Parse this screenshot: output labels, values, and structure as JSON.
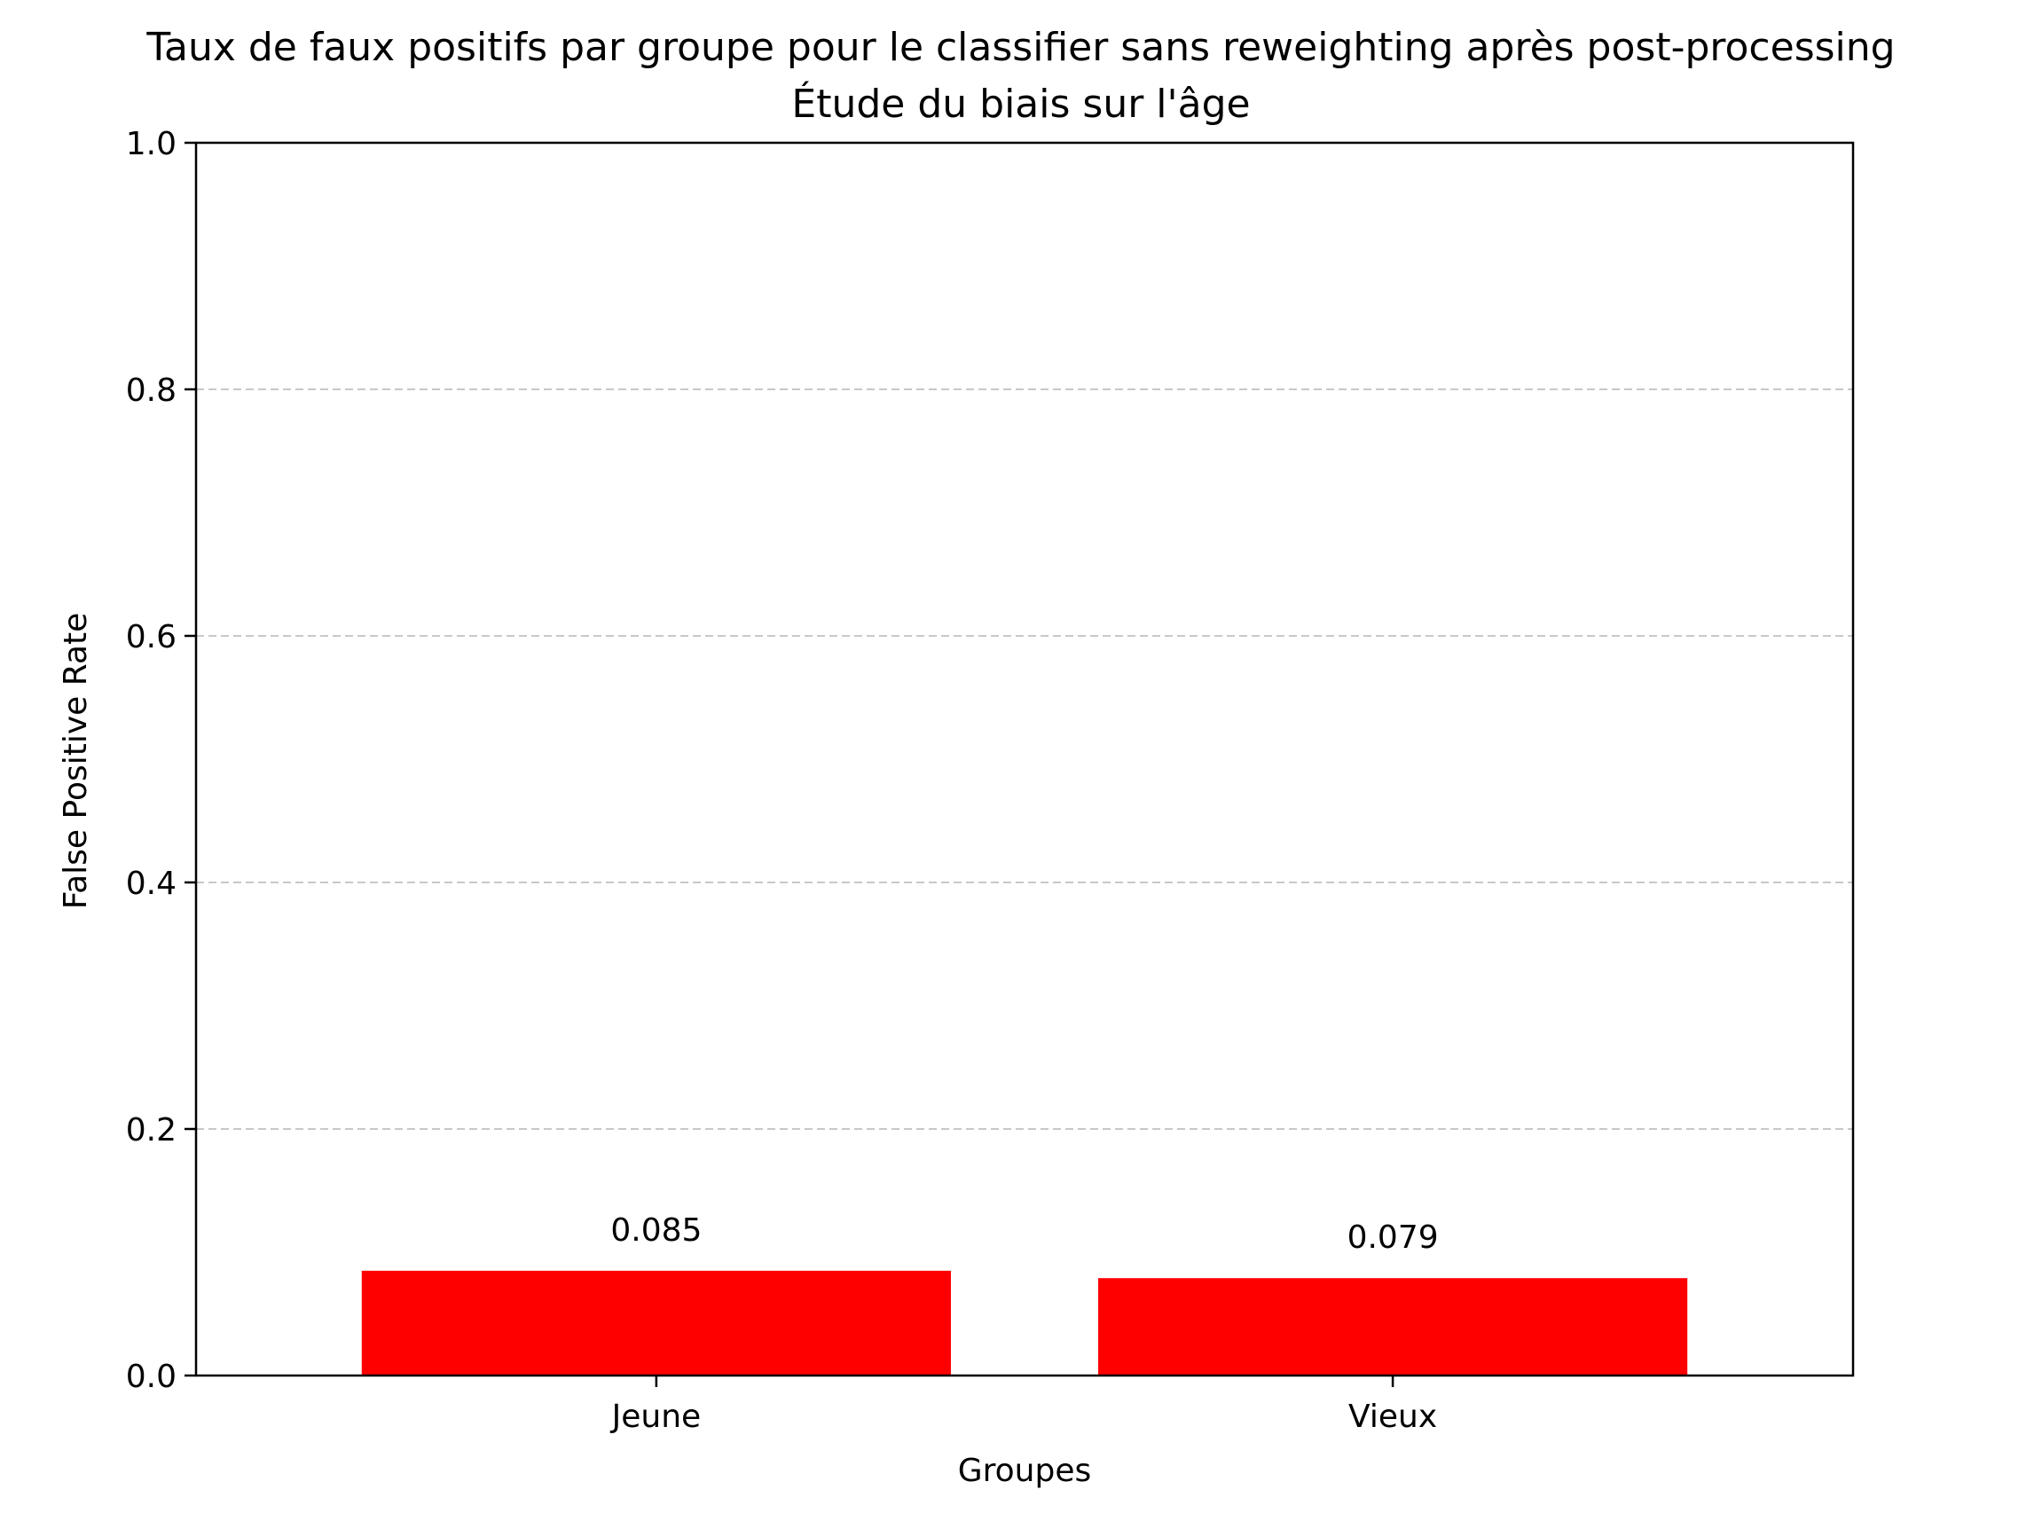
{
  "chart_data": {
    "type": "bar",
    "title": "Taux de faux positifs par groupe pour le classifier sans reweighting après post-processing",
    "subtitle": "Étude du biais sur l'âge",
    "xlabel": "Groupes",
    "ylabel": "False Positive Rate",
    "categories": [
      "Jeune",
      "Vieux"
    ],
    "values": [
      0.085,
      0.079
    ],
    "data_labels": [
      "0.085",
      "0.079"
    ],
    "ylim": [
      0,
      1.0
    ],
    "yticks": [
      0.0,
      0.2,
      0.4,
      0.6,
      0.8,
      1.0
    ],
    "ytick_labels": [
      "0.0",
      "0.2",
      "0.4",
      "0.6",
      "0.8",
      "1.0"
    ],
    "grid": "y-dashed",
    "bar_color": "#ff0000",
    "grid_color": "#c8c8c8"
  }
}
